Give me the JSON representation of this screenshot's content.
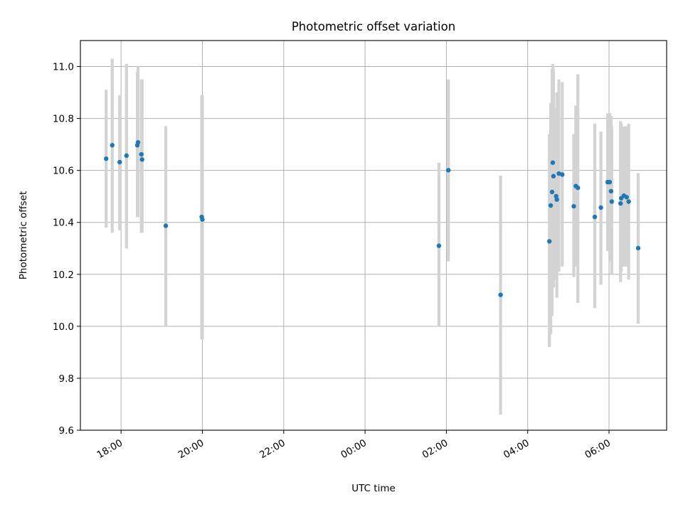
{
  "chart_data": {
    "type": "scatter",
    "title": "Photometric offset variation",
    "xlabel": "UTC time",
    "ylabel": "Photometric offset",
    "x_axis_kind": "time",
    "x_ticks": [
      "18:00",
      "20:00",
      "22:00",
      "00:00",
      "02:00",
      "04:00",
      "06:00"
    ],
    "y_ticks": [
      "9.6",
      "9.8",
      "10.0",
      "10.2",
      "10.4",
      "10.6",
      "10.8",
      "11.0"
    ],
    "ylim": [
      9.6,
      11.1
    ],
    "xlim": [
      "17:00",
      "07:25"
    ],
    "grid": true,
    "marker_color": "#1f77b4",
    "errorbar_color": "#d3d3d3",
    "points": [
      {
        "time": "17:38",
        "y": 10.645,
        "lo": 10.38,
        "hi": 10.91
      },
      {
        "time": "17:47",
        "y": 10.697,
        "lo": 10.36,
        "hi": 11.03
      },
      {
        "time": "17:58",
        "y": 10.632,
        "lo": 10.37,
        "hi": 10.89
      },
      {
        "time": "18:08",
        "y": 10.657,
        "lo": 10.3,
        "hi": 11.01
      },
      {
        "time": "18:24",
        "y": 10.697,
        "lo": 10.42,
        "hi": 10.98
      },
      {
        "time": "18:25",
        "y": 10.708,
        "lo": 10.42,
        "hi": 11.0
      },
      {
        "time": "18:30",
        "y": 10.662,
        "lo": 10.36,
        "hi": 10.95
      },
      {
        "time": "18:31",
        "y": 10.642,
        "lo": 10.36,
        "hi": 10.95
      },
      {
        "time": "19:06",
        "y": 10.387,
        "lo": 10.0,
        "hi": 10.77
      },
      {
        "time": "19:59",
        "y": 10.421,
        "lo": 9.95,
        "hi": 10.89
      },
      {
        "time": "20:00",
        "y": 10.411,
        "lo": 9.95,
        "hi": 10.89
      },
      {
        "time": "01:49",
        "y": 10.31,
        "lo": 10.0,
        "hi": 10.63
      },
      {
        "time": "02:03",
        "y": 10.601,
        "lo": 10.25,
        "hi": 10.95
      },
      {
        "time": "03:20",
        "y": 10.121,
        "lo": 9.66,
        "hi": 10.58
      },
      {
        "time": "04:32",
        "y": 10.327,
        "lo": 9.92,
        "hi": 10.74
      },
      {
        "time": "04:34",
        "y": 10.465,
        "lo": 9.97,
        "hi": 10.86
      },
      {
        "time": "04:36",
        "y": 10.517,
        "lo": 10.04,
        "hi": 10.99
      },
      {
        "time": "04:37",
        "y": 10.63,
        "lo": 10.25,
        "hi": 11.01
      },
      {
        "time": "04:38",
        "y": 10.578,
        "lo": 10.15,
        "hi": 10.99
      },
      {
        "time": "04:42",
        "y": 10.501,
        "lo": 10.18,
        "hi": 10.84
      },
      {
        "time": "04:43",
        "y": 10.488,
        "lo": 10.11,
        "hi": 10.9
      },
      {
        "time": "04:46",
        "y": 10.588,
        "lo": 10.21,
        "hi": 10.95
      },
      {
        "time": "04:51",
        "y": 10.584,
        "lo": 10.23,
        "hi": 10.94
      },
      {
        "time": "05:08",
        "y": 10.462,
        "lo": 10.19,
        "hi": 10.74
      },
      {
        "time": "05:11",
        "y": 10.54,
        "lo": 10.23,
        "hi": 10.85
      },
      {
        "time": "05:14",
        "y": 10.533,
        "lo": 10.09,
        "hi": 10.97
      },
      {
        "time": "05:39",
        "y": 10.421,
        "lo": 10.07,
        "hi": 10.78
      },
      {
        "time": "05:48",
        "y": 10.457,
        "lo": 10.16,
        "hi": 10.75
      },
      {
        "time": "05:58",
        "y": 10.555,
        "lo": 10.29,
        "hi": 10.82
      },
      {
        "time": "06:01",
        "y": 10.555,
        "lo": 10.29,
        "hi": 10.82
      },
      {
        "time": "06:03",
        "y": 10.52,
        "lo": 10.25,
        "hi": 10.81
      },
      {
        "time": "06:04",
        "y": 10.48,
        "lo": 10.2,
        "hi": 10.77
      },
      {
        "time": "06:17",
        "y": 10.473,
        "lo": 10.17,
        "hi": 10.79
      },
      {
        "time": "06:18",
        "y": 10.493,
        "lo": 10.21,
        "hi": 10.78
      },
      {
        "time": "06:22",
        "y": 10.503,
        "lo": 10.23,
        "hi": 10.77
      },
      {
        "time": "06:26",
        "y": 10.497,
        "lo": 10.23,
        "hi": 10.77
      },
      {
        "time": "06:29",
        "y": 10.48,
        "lo": 10.18,
        "hi": 10.78
      },
      {
        "time": "06:43",
        "y": 10.301,
        "lo": 10.01,
        "hi": 10.59
      }
    ]
  }
}
